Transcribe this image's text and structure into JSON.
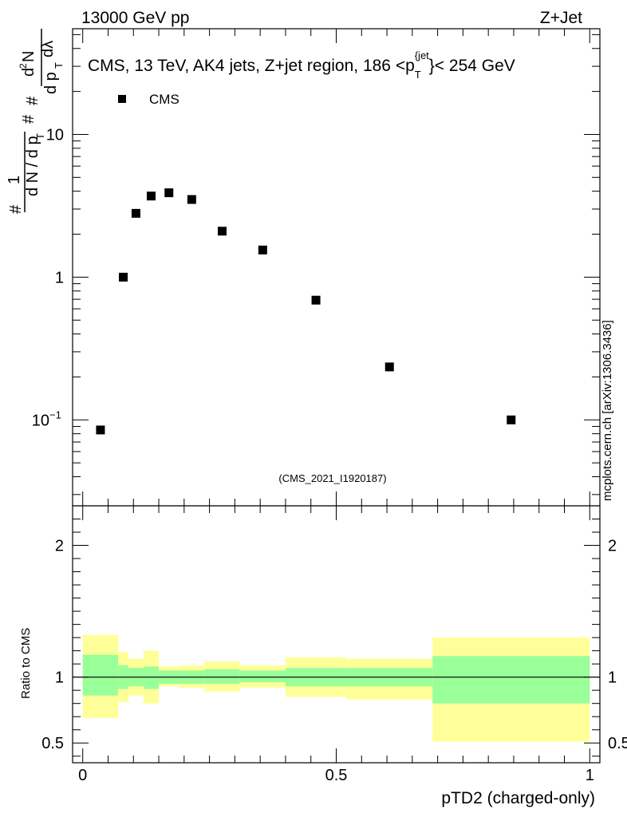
{
  "header": {
    "left": "13000 GeV pp",
    "right": "Z+Jet"
  },
  "watermark": "mcplots.cern.ch [arXiv:1306.3436]",
  "analysis_id": "(CMS_2021_I1920187)",
  "colors": {
    "band_inner": "#99ff99",
    "band_outer": "#ffff99",
    "marker": "#000000",
    "analysis_id": "#999999"
  },
  "chart_data": [
    {
      "type": "scatter",
      "panel": "main",
      "title": "CMS, 13 TeV, AK4 jets, Z+jet region, 186 <p_T^{jet}< 254 GeV",
      "ylabel": "1/(dN/dp_T) · d²N/(dp_T dλ)",
      "yscale": "log",
      "xlim": [
        -0.02,
        1.02
      ],
      "ylim": [
        0.025,
        55
      ],
      "yticks": [
        {
          "value": 0.1,
          "label": "10",
          "exponent": "−1"
        },
        {
          "value": 1,
          "label": "1"
        },
        {
          "value": 10,
          "label": "10"
        }
      ],
      "legend": {
        "position": "top-left",
        "entries": [
          "CMS"
        ]
      },
      "series": [
        {
          "name": "CMS",
          "x": [
            0.035,
            0.08,
            0.105,
            0.135,
            0.17,
            0.215,
            0.275,
            0.355,
            0.46,
            0.605,
            0.845
          ],
          "y": [
            0.085,
            1.0,
            2.8,
            3.7,
            3.9,
            3.5,
            2.1,
            1.55,
            0.69,
            0.235,
            0.1
          ]
        }
      ]
    },
    {
      "type": "area",
      "panel": "ratio",
      "ylabel": "Ratio to CMS",
      "xlabel": "pTD2 (charged-only)",
      "xlim": [
        -0.02,
        1.02
      ],
      "ylim": [
        0.35,
        2.3
      ],
      "yticks": [
        {
          "value": 0.5,
          "label": "0.5"
        },
        {
          "value": 1,
          "label": "1"
        },
        {
          "value": 2,
          "label": "2"
        }
      ],
      "xticks": [
        {
          "value": 0,
          "label": "0"
        },
        {
          "value": 0.5,
          "label": "0.5"
        },
        {
          "value": 1,
          "label": "1"
        }
      ],
      "reference_line": 1,
      "bins": [
        0,
        0.07,
        0.09,
        0.12,
        0.15,
        0.19,
        0.24,
        0.31,
        0.4,
        0.52,
        0.69,
        1.0
      ],
      "inner_lo": [
        0.86,
        0.91,
        0.93,
        0.91,
        0.95,
        0.95,
        0.95,
        0.96,
        0.93,
        0.93,
        0.8
      ],
      "inner_hi": [
        1.17,
        1.09,
        1.07,
        1.08,
        1.05,
        1.05,
        1.06,
        1.05,
        1.07,
        1.07,
        1.16
      ],
      "outer_lo": [
        0.69,
        0.81,
        0.86,
        0.8,
        0.93,
        0.92,
        0.89,
        0.92,
        0.85,
        0.83,
        0.51
      ],
      "outer_hi": [
        1.32,
        1.19,
        1.14,
        1.2,
        1.08,
        1.09,
        1.12,
        1.09,
        1.15,
        1.14,
        1.3
      ]
    }
  ]
}
